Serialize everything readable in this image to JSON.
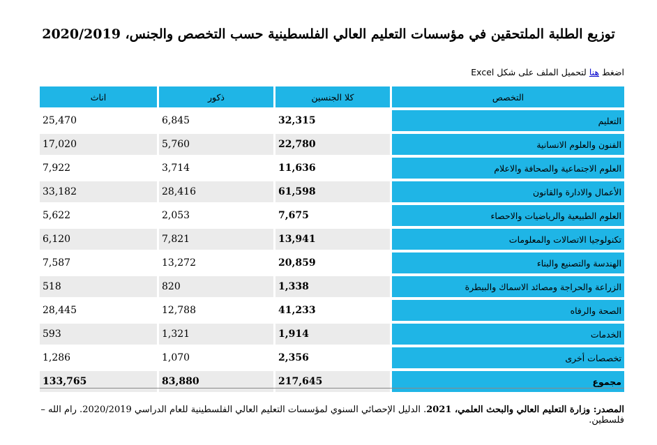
{
  "title": "توزيع الطلبة الملتحقين في مؤسسات التعليم العالي الفلسطينية حسب التخصص والجنس، 2020/2019",
  "download": {
    "prefix": "اضغط ",
    "link": "هنا",
    "suffix": " لتحميل الملف على شكل Excel"
  },
  "headers": [
    "التخصص",
    "كلا الجنسين",
    "ذكور",
    "اناث"
  ],
  "rows": [
    {
      "spec": "التعليم",
      "total": "32,315",
      "male": "6,845",
      "female": "25,470"
    },
    {
      "spec": "الفنون والعلوم الانسانية",
      "total": "22,780",
      "male": "5,760",
      "female": "17,020"
    },
    {
      "spec": "العلوم الاجتماعية والصحافة والاعلام",
      "total": "11,636",
      "male": "3,714",
      "female": "7,922"
    },
    {
      "spec": "الأعمال والادارة والقانون",
      "total": "61,598",
      "male": "28,416",
      "female": "33,182"
    },
    {
      "spec": "العلوم الطبيعية والرياضيات والاحصاء",
      "total": "7,675",
      "male": "2,053",
      "female": "5,622"
    },
    {
      "spec": "تكنولوجيا الاتصالات والمعلومات",
      "total": "13,941",
      "male": "7,821",
      "female": "6,120"
    },
    {
      "spec": "الهندسة والتصنيع والبناء",
      "total": "20,859",
      "male": "13,272",
      "female": "7,587"
    },
    {
      "spec": "الزراعة والحراجة ومصائد الاسماك والبيطرة",
      "total": "1,338",
      "male": "820",
      "female": "518"
    },
    {
      "spec": "الصحة والرفاه",
      "total": "41,233",
      "male": "12,788",
      "female": "28,445"
    },
    {
      "spec": "الخدمات",
      "total": "1,914",
      "male": "1,321",
      "female": "593"
    },
    {
      "spec": "تخصصات أخرى",
      "total": "2,356",
      "male": "1,070",
      "female": "1,286"
    }
  ],
  "sum": {
    "spec": "مجموع",
    "total": "217,645",
    "male": "83,880",
    "female": "133,765"
  },
  "source": {
    "label": "المصدر: ",
    "org": "وزارة التعليم العالي والبحث العلمي",
    "year": "، 2021",
    "text": ". الدليل الإحصائي السنوي لمؤسسات التعليم العالي الفلسطينية للعام الدراسي 2020/2019. رام الله – فلسطين."
  }
}
